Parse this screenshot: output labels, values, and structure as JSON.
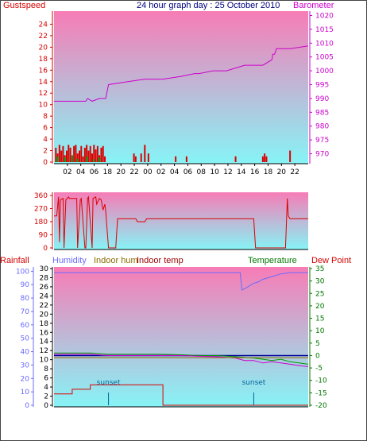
{
  "title": "24 hour graph day : 25 October 2010",
  "labels": {
    "gustspeed": "Gustspeed",
    "barometer": "Barometer",
    "rainfall": "Rainfall",
    "humidity": "Humidity",
    "indoor_hum": "Indoor hum",
    "indoor_temp": "Indoor temp",
    "temperature": "Temperature",
    "dew_point": "Dew Point"
  },
  "colors": {
    "gust": "#dd0000",
    "wind_avg": "#009900",
    "barometer": "#cc00cc",
    "wind_dir": "#dd0000",
    "rain": "#dd0000",
    "humidity": "#6a6aff",
    "indoor_hum": "#8a6a00",
    "indoor_temp": "#000099",
    "temperature": "#009900",
    "dew_point": "#cc00cc",
    "sun": "#006699"
  },
  "x_ticks": [
    "02",
    "04",
    "06",
    "08",
    "10",
    "12",
    "14",
    "16",
    "18",
    "20",
    "22",
    "00",
    "02",
    "04",
    "06",
    "08",
    "10",
    "12",
    "14",
    "16",
    "18",
    "20",
    "22"
  ],
  "x_ticks_bottom": [
    "02",
    "04",
    "16 sunset",
    "18",
    "20",
    "22",
    "00",
    "02",
    "04",
    "06",
    "08",
    "10",
    "12",
    "14",
    "16",
    "18",
    "20",
    "22"
  ],
  "chart_data": [
    {
      "type": "line",
      "title": "24 hour graph day : 25 October 2010",
      "left_axis": {
        "label": "Gustspeed",
        "range": [
          0,
          26
        ],
        "ticks": [
          0,
          2,
          4,
          6,
          8,
          10,
          12,
          14,
          16,
          18,
          20,
          22,
          24
        ]
      },
      "right_axis": {
        "label": "Barometer",
        "range": [
          967,
          1021
        ],
        "ticks": [
          970,
          975,
          980,
          985,
          990,
          995,
          1000,
          1005,
          1010,
          1015,
          1020
        ]
      },
      "series": [
        {
          "name": "Barometer",
          "axis": "right",
          "x": [
            0,
            3.5,
            3.7,
            4.2,
            5.0,
            5.7,
            6.0,
            8.0,
            10.0,
            12.0,
            14.0,
            15.5,
            16.0,
            17.5,
            18.0,
            19.0,
            20.0,
            21.0,
            22.0,
            23.0,
            24.0,
            24.1,
            24.3,
            24.5,
            26.0,
            28.0
          ],
          "y": [
            989,
            989,
            990,
            989,
            990,
            990,
            995,
            996,
            997,
            997,
            998,
            999,
            999,
            1000,
            1000,
            1000,
            1001,
            1002,
            1002,
            1002,
            1004,
            1006,
            1006,
            1008,
            1008,
            1009
          ]
        }
      ],
      "gust_bars": {
        "x": [
          0.2,
          0.4,
          0.6,
          0.8,
          1.0,
          1.2,
          1.4,
          1.6,
          1.8,
          2.0,
          2.2,
          2.4,
          2.6,
          2.8,
          3.0,
          3.2,
          3.4,
          3.6,
          3.8,
          4.0,
          4.2,
          4.4,
          4.6,
          4.8,
          5.0,
          5.2,
          5.4,
          5.6,
          8.8,
          9.0,
          9.6,
          10.0,
          10.4,
          13.4,
          14.6,
          20.0,
          23.0,
          23.2,
          23.4,
          26.0
        ],
        "y": [
          2.5,
          1.5,
          3.0,
          2.0,
          2.8,
          1.2,
          2.0,
          3.0,
          2.5,
          1.0,
          2.8,
          3.0,
          1.5,
          2.0,
          2.8,
          1.0,
          2.5,
          3.0,
          2.0,
          2.8,
          1.5,
          3.0,
          2.2,
          2.8,
          1.2,
          2.5,
          2.8,
          1.0,
          1.5,
          1.0,
          1.5,
          3.0,
          1.5,
          1.0,
          1.0,
          1.0,
          1.0,
          1.5,
          1.0,
          2.0
        ]
      },
      "avg_bars": {
        "x": [
          0.4,
          1.2,
          2.0,
          2.6,
          3.6,
          4.4,
          5.0
        ],
        "y": [
          1.0,
          0.8,
          1.2,
          0.6,
          1.0,
          0.5,
          0.8
        ]
      }
    },
    {
      "type": "line",
      "left_axis": {
        "range": [
          0,
          360
        ],
        "ticks": [
          0,
          90,
          180,
          270,
          360
        ]
      },
      "series": [
        {
          "name": "Wind direction",
          "x": [
            0,
            0.3,
            0.5,
            0.6,
            0.7,
            1.0,
            1.1,
            1.3,
            1.6,
            1.7,
            2.5,
            2.6,
            2.9,
            3.0,
            3.4,
            3.5,
            3.7,
            3.8,
            4.2,
            4.3,
            4.6,
            4.7,
            5.0,
            5.2,
            5.4,
            5.6,
            5.7,
            6.0,
            6.8,
            7.0,
            9.0,
            9.2,
            10.0,
            10.2,
            22.0,
            22.2,
            25.5,
            25.7,
            25.8,
            26.0,
            28.0
          ],
          "y": [
            220,
            220,
            350,
            40,
            330,
            340,
            0,
            330,
            350,
            340,
            340,
            0,
            330,
            340,
            0,
            0,
            340,
            350,
            0,
            340,
            350,
            300,
            340,
            330,
            260,
            300,
            250,
            0,
            0,
            200,
            200,
            180,
            180,
            200,
            200,
            0,
            0,
            340,
            220,
            200,
            200
          ]
        }
      ]
    },
    {
      "type": "line",
      "left_axis": {
        "label": "Humidity",
        "range": [
          0,
          102
        ],
        "ticks": [
          0,
          10,
          20,
          30,
          40,
          50,
          60,
          70,
          80,
          90,
          100
        ]
      },
      "inner_axis": {
        "label": "Rainfall",
        "range": [
          0,
          30
        ],
        "ticks": [
          0,
          2,
          4,
          6,
          8,
          10,
          12,
          14,
          16,
          18,
          20,
          22,
          24,
          26,
          28,
          30
        ]
      },
      "right_axis": {
        "label": "Temperature",
        "range": [
          -20,
          35
        ],
        "ticks": [
          35,
          30,
          25,
          20,
          15,
          10,
          5,
          0,
          -5,
          -10,
          -15,
          -20
        ]
      },
      "series": [
        {
          "name": "Humidity",
          "axis": "left",
          "color_key": "humidity",
          "x": [
            0,
            20.5,
            20.7,
            21.0,
            21.5,
            22.0,
            22.5,
            23.0,
            24.0,
            25.0,
            26.0,
            28.0
          ],
          "y": [
            99,
            99,
            86,
            87,
            89,
            91,
            92,
            94,
            96,
            98,
            99,
            99
          ]
        },
        {
          "name": "Rainfall",
          "axis": "inner",
          "color_key": "rain",
          "x": [
            0,
            2.0,
            2.0,
            4.0,
            4.0,
            5.5,
            5.5,
            12.0,
            12.0,
            28.0
          ],
          "y": [
            2.5,
            2.5,
            3.5,
            3.5,
            4.5,
            4.5,
            4.5,
            4.5,
            0,
            0
          ]
        },
        {
          "name": "Indoor temp",
          "axis": "right",
          "color_key": "indoor_temp",
          "x": [
            0,
            28
          ],
          "y": [
            0,
            0
          ]
        },
        {
          "name": "Temperature",
          "axis": "right",
          "color_key": "temperature",
          "x": [
            0,
            2,
            4,
            6,
            8,
            10,
            12,
            14,
            16,
            18,
            20,
            22,
            23,
            24,
            25,
            26,
            27,
            28
          ],
          "y": [
            1,
            1,
            1,
            0.5,
            0.5,
            0.5,
            0.5,
            0.3,
            0,
            0,
            -0.5,
            -1.0,
            -1.5,
            -2.0,
            -1.5,
            -2.5,
            -3.0,
            -3.5
          ]
        },
        {
          "name": "Dew Point",
          "axis": "right",
          "color_key": "dew_point",
          "x": [
            0,
            2,
            4,
            6,
            8,
            10,
            12,
            14,
            16,
            18,
            20,
            21,
            22,
            23,
            24,
            25,
            26,
            27,
            28
          ],
          "y": [
            0.5,
            0.5,
            0.5,
            0,
            0,
            0,
            0,
            0,
            -0.3,
            -0.5,
            -1.0,
            -2.0,
            -2.0,
            -3.0,
            -2.5,
            -3.0,
            -3.5,
            -4.0,
            -4.5
          ]
        },
        {
          "name": "Indoor hum",
          "axis": "left",
          "color_key": "indoor_hum",
          "x": [
            0,
            28
          ],
          "y": [
            35.5,
            35.5
          ]
        }
      ],
      "markers": [
        {
          "label": "sunset",
          "x": 6.0
        },
        {
          "label": "sunset",
          "x": 22.0
        }
      ]
    }
  ]
}
